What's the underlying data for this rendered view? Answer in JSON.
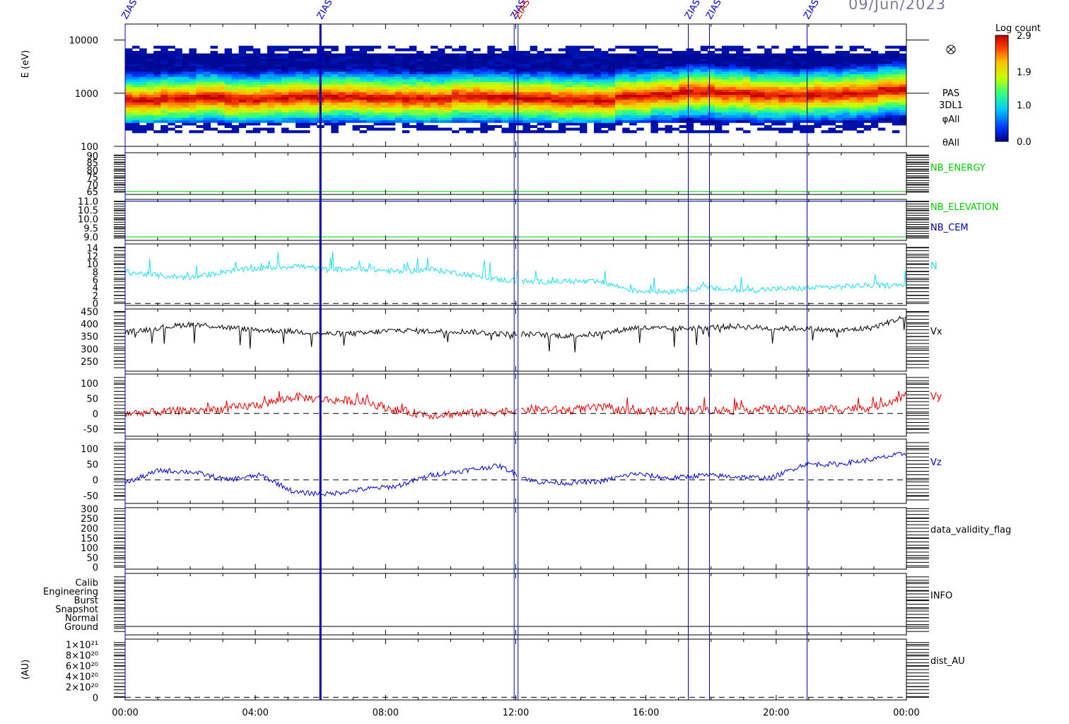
{
  "date_label": "09/Jun/2023",
  "colors": {
    "frame": "#000000",
    "event_line": "#0000aa",
    "n": "#22dde8",
    "vx": "#000000",
    "vy": "#e00000",
    "vz": "#0000cc",
    "nb_energy": "#00cc00",
    "nb_cem": "#0000aa"
  },
  "event_markers": [
    {
      "label": "ZIAS",
      "time_h": 0.0,
      "color": "#0000cc"
    },
    {
      "label": "ZIAS",
      "time_h": 6.0,
      "color": "#0000cc"
    },
    {
      "label": "ZIAS",
      "time_h": 11.95,
      "color": "#0000cc"
    },
    {
      "label": "ZIAS",
      "time_h": 12.07,
      "color": "#cc0000"
    },
    {
      "label": "ZIAS",
      "time_h": 17.3,
      "color": "#0000cc"
    },
    {
      "label": "ZIAS",
      "time_h": 17.95,
      "color": "#0000cc"
    },
    {
      "label": "ZIAS",
      "time_h": 20.95,
      "color": "#0000cc"
    }
  ],
  "chart_data": [
    {
      "type": "heatmap",
      "id": "spectrogram",
      "ylabel": "E (eV)",
      "yscale": "log",
      "ylim": [
        100,
        20000
      ],
      "yticks": [
        "100",
        "1000",
        "10000"
      ],
      "right_labels": [
        "PAS",
        "3DL1",
        "φAll",
        "θAll"
      ],
      "colorbar": {
        "title": "Log count",
        "ticks": [
          "0.0",
          "1.0",
          "1.9",
          "2.9"
        ],
        "range": [
          0.0,
          2.9
        ]
      },
      "peak_energy_ev": [
        700,
        750,
        800,
        720,
        760,
        800,
        820,
        780,
        760,
        740,
        820,
        800,
        760,
        720,
        700,
        820,
        900,
        1000,
        950,
        880,
        860,
        900,
        950,
        1100
      ]
    },
    {
      "type": "line",
      "id": "nb_energy",
      "yticks": [
        "65",
        "70",
        "75",
        "80",
        "85",
        "90"
      ],
      "ylim": [
        63,
        92
      ],
      "series": [
        {
          "name": "NB_ENERGY",
          "constant": 65
        }
      ]
    },
    {
      "type": "line",
      "id": "nb_elev",
      "yticks": [
        "9.0",
        "9.5",
        "10.0",
        "10.5",
        "11.0"
      ],
      "ylim": [
        8.8,
        11.1
      ],
      "series": [
        {
          "name": "NB_ELEVATION",
          "constant": 9.0
        },
        {
          "name": "NB_CEM",
          "constant": 11.0
        }
      ]
    },
    {
      "type": "line",
      "id": "n",
      "yticks": [
        "0",
        "2",
        "4",
        "6",
        "8",
        "10",
        "12",
        "14"
      ],
      "ylim": [
        -0.5,
        15
      ],
      "series": [
        {
          "name": "N",
          "values": [
            8.0,
            7.0,
            6.5,
            8.2,
            8.8,
            9.5,
            8.5,
            8.8,
            8.0,
            8.6,
            7.4,
            6.0,
            5.4,
            5.6,
            5.4,
            3.2,
            3.0,
            4.0,
            3.3,
            3.6,
            3.8,
            4.2,
            4.6,
            4.5
          ]
        }
      ]
    },
    {
      "type": "line",
      "id": "vx",
      "yticks": [
        "250",
        "300",
        "350",
        "400",
        "450"
      ],
      "ylim": [
        210,
        460
      ],
      "series": [
        {
          "name": "Vx",
          "values": [
            365,
            385,
            400,
            385,
            375,
            370,
            360,
            362,
            375,
            370,
            370,
            360,
            358,
            352,
            360,
            385,
            380,
            385,
            390,
            382,
            382,
            372,
            385,
            430
          ]
        }
      ]
    },
    {
      "type": "line",
      "id": "vy",
      "yticks": [
        "-50",
        "0",
        "50",
        "100"
      ],
      "ylim": [
        -75,
        130
      ],
      "series": [
        {
          "name": "Vy",
          "values": [
            0,
            5,
            10,
            15,
            30,
            55,
            45,
            40,
            10,
            -5,
            0,
            5,
            15,
            10,
            20,
            5,
            10,
            12,
            10,
            15,
            10,
            15,
            20,
            60
          ]
        }
      ]
    },
    {
      "type": "line",
      "id": "vz",
      "yticks": [
        "-50",
        "0",
        "50",
        "100"
      ],
      "ylim": [
        -75,
        130
      ],
      "series": [
        {
          "name": "Vz",
          "values": [
            -10,
            30,
            25,
            0,
            15,
            -40,
            -45,
            -30,
            -20,
            15,
            30,
            45,
            -5,
            -10,
            -5,
            20,
            5,
            15,
            10,
            5,
            50,
            50,
            65,
            85
          ]
        }
      ]
    },
    {
      "type": "line",
      "id": "validity",
      "yticks": [
        "0",
        "50",
        "100",
        "150",
        "200",
        "250",
        "300"
      ],
      "ylim": [
        -10,
        305
      ],
      "series": [
        {
          "name": "data_validity_flag",
          "values": []
        }
      ]
    },
    {
      "type": "line",
      "id": "info",
      "yticks": [
        "Ground",
        "Normal",
        "Snapshot",
        "Burst",
        "Engineering",
        "Calib"
      ],
      "ylim": [
        0,
        6
      ],
      "series": [
        {
          "name": "INFO",
          "values": []
        }
      ]
    },
    {
      "type": "line",
      "id": "dist",
      "ylabel": "(AU)",
      "yticks": [
        "0",
        "2×10²⁰",
        "4×10²⁰",
        "6×10²⁰",
        "8×10²⁰",
        "1×10²¹"
      ],
      "ylim": [
        -0.05,
        1.1
      ],
      "series": [
        {
          "name": "dist_AU",
          "values": []
        }
      ]
    }
  ],
  "x_axis": {
    "ticks": [
      "00:00",
      "04:00",
      "08:00",
      "12:00",
      "16:00",
      "20:00",
      "00:00"
    ],
    "tick_hours": [
      0,
      4,
      8,
      12,
      16,
      20,
      24
    ],
    "xlim": [
      0,
      24
    ],
    "gap_hours": [
      12.05,
      12.15
    ]
  }
}
